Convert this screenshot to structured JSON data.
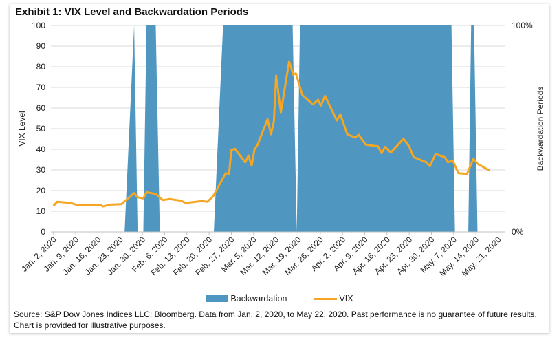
{
  "title": "Exhibit 1: VIX Level and Backwardation Periods",
  "chart_data": {
    "type": "area+line",
    "title": "Exhibit 1: VIX Level and Backwardation Periods",
    "xlabel": "",
    "ylabel": "VIX Level",
    "ylabel_right": "Backwardation Periods",
    "x_units": "calendar days since Jan. 2, 2020",
    "xlim": [
      0,
      142
    ],
    "ylim": [
      0,
      100
    ],
    "ylim_right": [
      0,
      1
    ],
    "yticks": [
      "0",
      "10",
      "20",
      "30",
      "40",
      "50",
      "60",
      "70",
      "80",
      "90",
      "100"
    ],
    "yticks_right": [
      "0%",
      "100%"
    ],
    "xticks": [
      "Jan. 2, 2020",
      "Jan. 9, 2020",
      "Jan. 16, 2020",
      "Jan. 23, 2020",
      "Jan. 30, 2020",
      "Feb. 6, 2020",
      "Feb. 13, 2020",
      "Feb. 20, 2020",
      "Feb. 27, 2020",
      "Mar. 5, 2020",
      "Mar. 12, 2020",
      "Mar. 19, 2020",
      "Mar. 26, 2020",
      "Apr. 2, 2020",
      "Apr. 9, 2020",
      "Apr. 16, 2020",
      "Apr. 23, 2020",
      "Apr. 30, 2020",
      "May. 7, 2020",
      "May. 14, 2020",
      "May. 21, 2020"
    ],
    "grid": true,
    "legend_position": "bottom",
    "series": [
      {
        "name": "Backwardation",
        "type": "area",
        "color": "#4f97c1",
        "axis": "right",
        "points": [
          [
            0,
            0
          ],
          [
            22.4,
            0
          ],
          [
            25.4,
            1
          ],
          [
            26.5,
            0
          ],
          [
            28.3,
            0
          ],
          [
            29.3,
            1
          ],
          [
            32.2,
            1
          ],
          [
            33.5,
            0
          ],
          [
            50.5,
            0
          ],
          [
            53.4,
            1
          ],
          [
            75.3,
            1
          ],
          [
            76.6,
            0
          ],
          [
            77.6,
            1
          ],
          [
            125.3,
            1
          ],
          [
            126.4,
            0
          ],
          [
            130.6,
            0
          ],
          [
            131.5,
            1
          ],
          [
            132.4,
            1
          ],
          [
            133.5,
            0
          ],
          [
            140,
            0
          ]
        ]
      },
      {
        "name": "VIX",
        "type": "line",
        "color": "#f5a623",
        "axis": "left",
        "points": [
          [
            0,
            12.6
          ],
          [
            1.2,
            14.6
          ],
          [
            5.5,
            14.0
          ],
          [
            7.7,
            12.9
          ],
          [
            15,
            12.9
          ],
          [
            15.6,
            12.3
          ],
          [
            17.8,
            13.2
          ],
          [
            21.4,
            13.4
          ],
          [
            25.4,
            18.8
          ],
          [
            26.5,
            16.8
          ],
          [
            28.3,
            16.2
          ],
          [
            29.3,
            19.2
          ],
          [
            32.2,
            18.4
          ],
          [
            34.4,
            15.4
          ],
          [
            36.6,
            15.9
          ],
          [
            40.2,
            15.1
          ],
          [
            41.6,
            14.0
          ],
          [
            46.7,
            14.9
          ],
          [
            48.5,
            14.6
          ],
          [
            50.3,
            17.3
          ],
          [
            54.2,
            28.4
          ],
          [
            55.3,
            28.1
          ],
          [
            56,
            39.6
          ],
          [
            57.1,
            40.3
          ],
          [
            60.4,
            33.7
          ],
          [
            61.4,
            37
          ],
          [
            62.4,
            32.1
          ],
          [
            63.3,
            39.9
          ],
          [
            64.3,
            42.3
          ],
          [
            67.4,
            54.6
          ],
          [
            68.5,
            47.3
          ],
          [
            69.4,
            53.4
          ],
          [
            70.1,
            75.7
          ],
          [
            71.6,
            57.9
          ],
          [
            74.2,
            82.6
          ],
          [
            75.5,
            76.2
          ],
          [
            76.3,
            76.8
          ],
          [
            78.4,
            66.2
          ],
          [
            81.7,
            61.8
          ],
          [
            83.3,
            64
          ],
          [
            84.2,
            61.2
          ],
          [
            85.5,
            65.9
          ],
          [
            89.2,
            54
          ],
          [
            90.3,
            57
          ],
          [
            92.5,
            47.3
          ],
          [
            95,
            45.7
          ],
          [
            96.1,
            47
          ],
          [
            98.3,
            42.3
          ],
          [
            102.2,
            41.4
          ],
          [
            103.3,
            38.1
          ],
          [
            104.4,
            41.2
          ],
          [
            106.2,
            38.4
          ],
          [
            110.2,
            45.1
          ],
          [
            112,
            41.4
          ],
          [
            113.4,
            36.2
          ],
          [
            117.4,
            33.7
          ],
          [
            118.5,
            31.8
          ],
          [
            120.3,
            37.7
          ],
          [
            123.2,
            36.2
          ],
          [
            124.2,
            33.7
          ],
          [
            125.7,
            34.6
          ],
          [
            127.5,
            28.4
          ],
          [
            130.2,
            28.1
          ],
          [
            132.2,
            35.4
          ],
          [
            133.6,
            32.9
          ],
          [
            137.4,
            29.6
          ]
        ]
      }
    ]
  },
  "legend": {
    "backwardation": "Backwardation",
    "vix": "VIX"
  },
  "source": "Source: S&P Dow Jones Indices LLC; Bloomberg. Data from Jan. 2, 2020, to May 22, 2020. Past performance is no guarantee of future results. Chart is provided for illustrative purposes."
}
